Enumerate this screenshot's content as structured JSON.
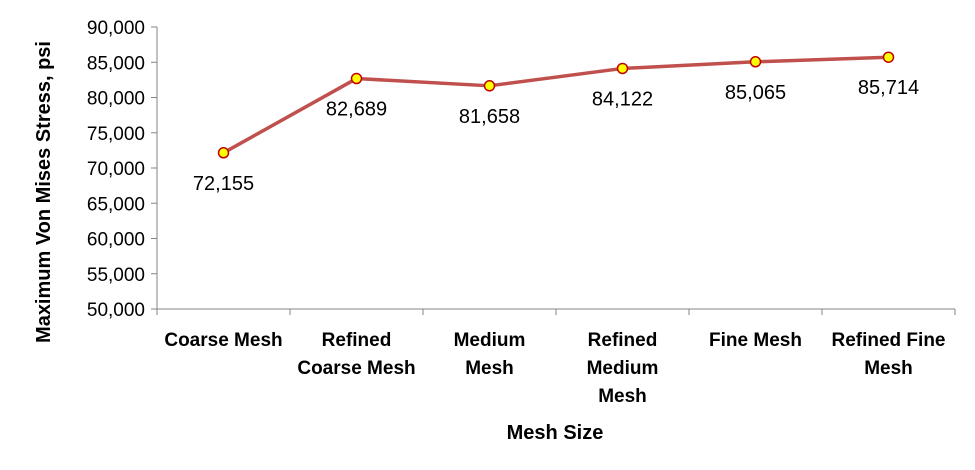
{
  "chart_data": {
    "type": "line",
    "title": "",
    "xlabel": "Mesh Size",
    "ylabel": "Maximum Von Mises Stress, psi",
    "categories": [
      [
        "Coarse Mesh"
      ],
      [
        "Refined",
        "Coarse Mesh"
      ],
      [
        "Medium",
        "Mesh"
      ],
      [
        "Refined",
        "Medium",
        "Mesh"
      ],
      [
        "Fine Mesh"
      ],
      [
        "Refined Fine",
        "Mesh"
      ]
    ],
    "series": [
      {
        "values": [
          72155,
          82689,
          81658,
          84122,
          85065,
          85714
        ],
        "labels": [
          "72,155",
          "82,689",
          "81,658",
          "84,122",
          "85,065",
          "85,714"
        ],
        "label_position": [
          "below",
          "below",
          "below",
          "below",
          "below",
          "below"
        ]
      }
    ],
    "ylim": [
      50000,
      90000
    ],
    "yticks": [
      "50,000",
      "55,000",
      "60,000",
      "65,000",
      "70,000",
      "75,000",
      "80,000",
      "85,000",
      "90,000"
    ],
    "grid": false,
    "legend": "none",
    "colors": {
      "line": "#C0504D",
      "marker_fill": "#FFFF00",
      "marker_edge": "#C00000",
      "axis": "#868686"
    }
  }
}
